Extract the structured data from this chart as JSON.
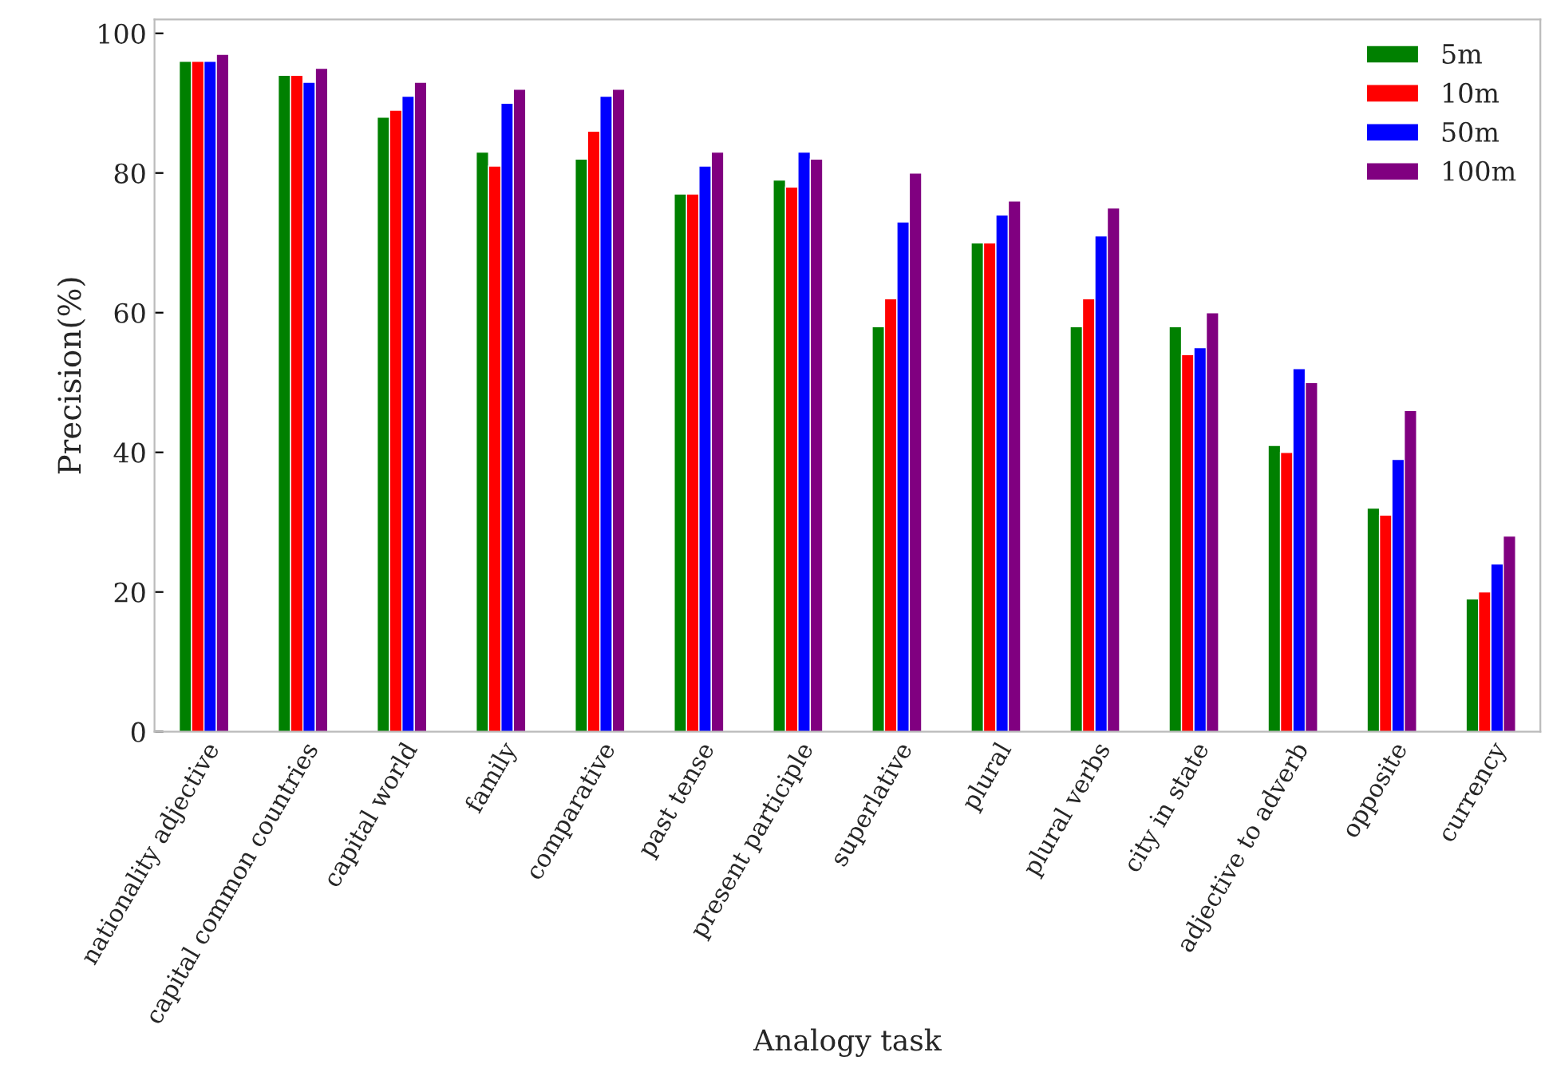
{
  "chart_data": {
    "type": "bar",
    "xlabel": "Analogy task",
    "ylabel": "Precision(%)",
    "categories": [
      "nationality adjective",
      "capital common countries",
      "capital world",
      "family",
      "comparative",
      "past tense",
      "present participle",
      "superlative",
      "plural",
      "plural verbs",
      "city in state",
      "adjective to adverb",
      "opposite",
      "currency"
    ],
    "series": [
      {
        "name": "5m",
        "color": "#008000",
        "values": [
          96,
          94,
          88,
          83,
          82,
          77,
          79,
          58,
          70,
          58,
          58,
          41,
          32,
          19
        ]
      },
      {
        "name": "10m",
        "color": "#ff0000",
        "values": [
          96,
          94,
          89,
          81,
          86,
          77,
          78,
          62,
          70,
          62,
          54,
          40,
          31,
          20
        ]
      },
      {
        "name": "50m",
        "color": "#0000ff",
        "values": [
          96,
          93,
          91,
          90,
          91,
          81,
          83,
          73,
          74,
          71,
          55,
          52,
          39,
          24
        ]
      },
      {
        "name": "100m",
        "color": "#800080",
        "values": [
          97,
          95,
          93,
          92,
          92,
          83,
          82,
          80,
          76,
          75,
          60,
          50,
          46,
          28
        ]
      }
    ],
    "ylim": [
      0,
      102
    ],
    "yticks": [
      0,
      20,
      40,
      60,
      80,
      100
    ],
    "grid": false,
    "legend": "top right"
  }
}
